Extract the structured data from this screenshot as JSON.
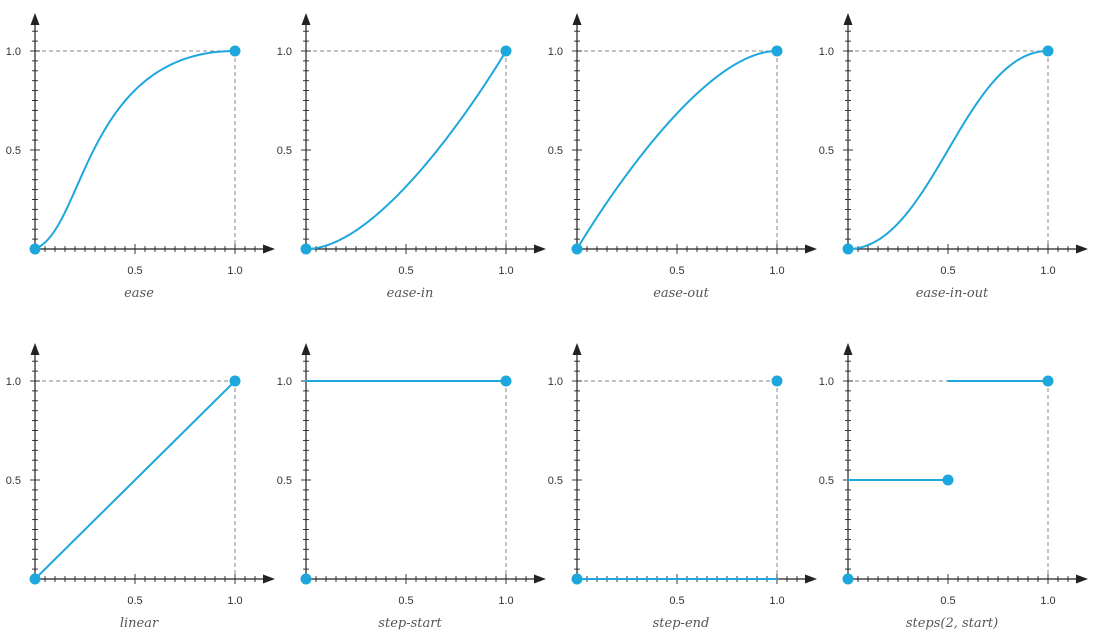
{
  "colors": {
    "curve": "#1ea7dc",
    "axis": "#222222",
    "guide": "#888888",
    "text": "#333333"
  },
  "tick_labels": {
    "half": "0.5",
    "one": "1.0"
  },
  "chart_data": [
    {
      "type": "line",
      "title": "ease",
      "xlim": [
        0,
        1
      ],
      "ylim": [
        0,
        1
      ],
      "curve": "cubic-bezier",
      "control_points": [
        [
          0.25,
          0.1
        ],
        [
          0.25,
          1.0
        ]
      ],
      "start_point": [
        0,
        0
      ],
      "end_point": [
        1,
        1
      ]
    },
    {
      "type": "line",
      "title": "ease-in",
      "xlim": [
        0,
        1
      ],
      "ylim": [
        0,
        1
      ],
      "curve": "cubic-bezier",
      "control_points": [
        [
          0.42,
          0.0
        ],
        [
          1.0,
          1.0
        ]
      ],
      "start_point": [
        0,
        0
      ],
      "end_point": [
        1,
        1
      ]
    },
    {
      "type": "line",
      "title": "ease-out",
      "xlim": [
        0,
        1
      ],
      "ylim": [
        0,
        1
      ],
      "curve": "cubic-bezier",
      "control_points": [
        [
          0.0,
          0.0
        ],
        [
          0.58,
          1.0
        ]
      ],
      "start_point": [
        0,
        0
      ],
      "end_point": [
        1,
        1
      ]
    },
    {
      "type": "line",
      "title": "ease-in-out",
      "xlim": [
        0,
        1
      ],
      "ylim": [
        0,
        1
      ],
      "curve": "cubic-bezier",
      "control_points": [
        [
          0.42,
          0.0
        ],
        [
          0.58,
          1.0
        ]
      ],
      "start_point": [
        0,
        0
      ],
      "end_point": [
        1,
        1
      ]
    },
    {
      "type": "line",
      "title": "linear",
      "xlim": [
        0,
        1
      ],
      "ylim": [
        0,
        1
      ],
      "curve": "linear",
      "start_point": [
        0,
        0
      ],
      "end_point": [
        1,
        1
      ]
    },
    {
      "type": "line",
      "title": "step-start",
      "xlim": [
        0,
        1
      ],
      "ylim": [
        0,
        1
      ],
      "curve": "steps",
      "segments": [
        {
          "x": [
            0,
            1
          ],
          "y": 1
        }
      ],
      "points": [
        [
          0,
          0
        ],
        [
          1,
          1
        ]
      ]
    },
    {
      "type": "line",
      "title": "step-end",
      "xlim": [
        0,
        1
      ],
      "ylim": [
        0,
        1
      ],
      "curve": "steps",
      "segments": [
        {
          "x": [
            0,
            1
          ],
          "y": 0
        }
      ],
      "points": [
        [
          0,
          0
        ],
        [
          1,
          1
        ]
      ]
    },
    {
      "type": "line",
      "title": "steps(2, start)",
      "xlim": [
        0,
        1
      ],
      "ylim": [
        0,
        1
      ],
      "curve": "steps",
      "segments": [
        {
          "x": [
            0,
            0.5
          ],
          "y": 0.5
        },
        {
          "x": [
            0.5,
            1
          ],
          "y": 1
        }
      ],
      "points": [
        [
          0,
          0
        ],
        [
          0.5,
          0.5
        ],
        [
          1,
          1
        ]
      ]
    }
  ]
}
